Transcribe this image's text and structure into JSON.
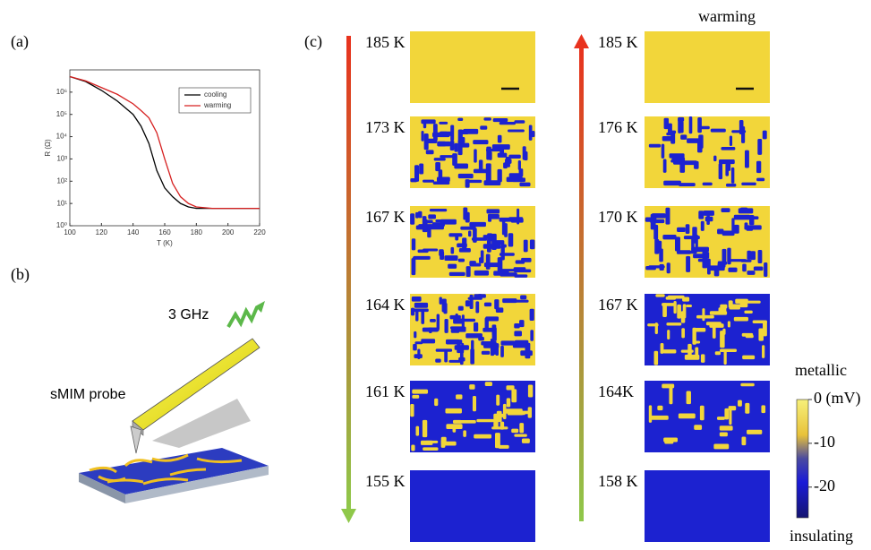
{
  "panel_labels": [
    "(a)",
    "(b)",
    "(c)"
  ],
  "chart_data": {
    "type": "line",
    "xlabel": "T (K)",
    "ylabel": "R (Ω)",
    "xlim": [
      100,
      220
    ],
    "xticks": [
      100,
      120,
      140,
      160,
      180,
      200,
      220
    ],
    "ylim": [
      1,
      10000000
    ],
    "log_y": true,
    "yticks": [
      {
        "value": 1,
        "label": "10⁰"
      },
      {
        "value": 10,
        "label": "10¹"
      },
      {
        "value": 100,
        "label": "10²"
      },
      {
        "value": 1000,
        "label": "10³"
      },
      {
        "value": 10000,
        "label": "10⁴"
      },
      {
        "value": 100000,
        "label": "10⁵"
      },
      {
        "value": 1000000,
        "label": "10⁶"
      }
    ],
    "legend": "upper right",
    "series": [
      {
        "name": "cooling",
        "color": "#000000",
        "x": [
          100,
          110,
          120,
          130,
          140,
          145,
          150,
          155,
          160,
          165,
          170,
          175,
          180,
          190,
          200,
          220
        ],
        "values": [
          5000000,
          3000000,
          1200000,
          400000,
          100000,
          30000,
          5000,
          300,
          50,
          20,
          10,
          7,
          6,
          6,
          6,
          6
        ]
      },
      {
        "name": "warming",
        "color": "#d62020",
        "x": [
          100,
          110,
          120,
          130,
          140,
          145,
          150,
          155,
          160,
          165,
          170,
          175,
          180,
          190,
          200,
          220
        ],
        "values": [
          5000000,
          3200000,
          1600000,
          800000,
          300000,
          150000,
          70000,
          15000,
          1000,
          80,
          20,
          10,
          7,
          6,
          6,
          6
        ]
      }
    ]
  },
  "schematic": {
    "frequency": "3 GHz",
    "probe": "sMIM probe"
  },
  "maps": {
    "cooling": {
      "temps": [
        "185 K",
        "173 K",
        "167 K",
        "164 K",
        "161 K",
        "155 K"
      ]
    },
    "warming": {
      "title": "warming",
      "temps": [
        "185 K",
        "176 K",
        "170 K",
        "167 K",
        "164K",
        "158 K"
      ]
    }
  },
  "colorbar": {
    "top_label": "metallic",
    "bottom_label": "insulating",
    "lim": [
      -27,
      0
    ],
    "ticks": [
      {
        "value": 0,
        "label": "0 (mV)"
      },
      -10,
      -20
    ]
  }
}
